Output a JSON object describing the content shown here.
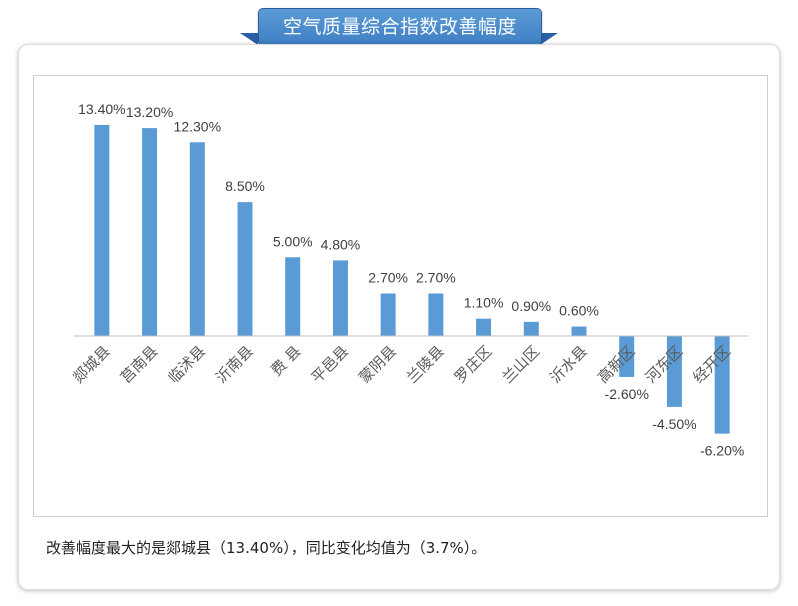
{
  "banner": {
    "title": "空气质量综合指数改善幅度"
  },
  "caption": {
    "text": "改善幅度最大的是郯城县（13.40%），同比变化均值为（3.7%）。"
  },
  "chart_data": {
    "type": "bar",
    "title": "",
    "xlabel": "",
    "ylabel": "",
    "categories": [
      "郯城县",
      "莒南县",
      "临沭县",
      "沂南县",
      "费 县",
      "平邑县",
      "蒙阴县",
      "兰陵县",
      "罗庄区",
      "兰山区",
      "沂水县",
      "高新区",
      "河东区",
      "经开区"
    ],
    "values": [
      13.4,
      13.2,
      12.3,
      8.5,
      5.0,
      4.8,
      2.7,
      2.7,
      1.1,
      0.9,
      0.6,
      -2.6,
      -4.5,
      -6.2
    ],
    "value_labels": [
      "13.40%",
      "13.20%",
      "12.30%",
      "8.50%",
      "5.00%",
      "4.80%",
      "2.70%",
      "2.70%",
      "1.10%",
      "0.90%",
      "0.60%",
      "-2.60%",
      "-4.50%",
      "-6.20%"
    ],
    "bar_color": "#5b9bd5",
    "ylim": [
      -8,
      15
    ],
    "grid": false,
    "legend": "none"
  }
}
